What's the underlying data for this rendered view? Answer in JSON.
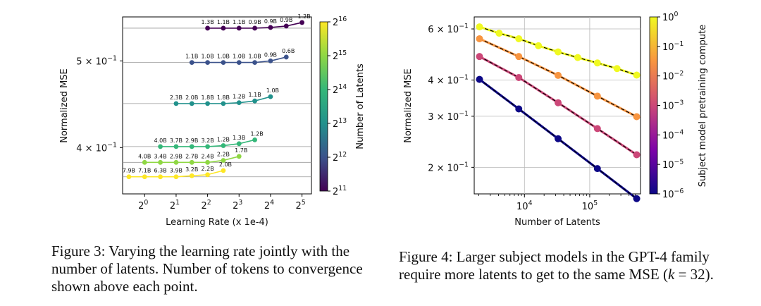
{
  "chart_data": [
    {
      "type": "line",
      "title": "",
      "xlabel": "Learning Rate (x 1e-4)",
      "ylabel": "Normalized MSE",
      "x_scale": "log2",
      "y_scale": "log",
      "xlim_log2": [
        -0.7,
        5.3
      ],
      "ylim": [
        0.355,
        0.56
      ],
      "x_ticks": [
        {
          "exp": 0,
          "label": "2",
          "sup": "0"
        },
        {
          "exp": 1,
          "label": "2",
          "sup": "1"
        },
        {
          "exp": 2,
          "label": "2",
          "sup": "2"
        },
        {
          "exp": 3,
          "label": "2",
          "sup": "3"
        },
        {
          "exp": 4,
          "label": "2",
          "sup": "4"
        },
        {
          "exp": 5,
          "label": "2",
          "sup": "5"
        }
      ],
      "y_ticks": [
        {
          "value": 0.5,
          "label": "5 × 10",
          "sup": "−1"
        },
        {
          "value": 0.4,
          "label": "4 × 10",
          "sup": "−1"
        }
      ],
      "colorbar": {
        "label": "Number of Latents",
        "ticks": [
          {
            "label": "2",
            "sup": "16"
          },
          {
            "label": "2",
            "sup": "15"
          },
          {
            "label": "2",
            "sup": "14"
          },
          {
            "label": "2",
            "sup": "13"
          },
          {
            "label": "2",
            "sup": "12"
          },
          {
            "label": "2",
            "sup": "11"
          }
        ]
      },
      "series": [
        {
          "name": "2^16 latents",
          "color": "#fde725",
          "ref_y": 0.371,
          "x_log2": [
            -0.5,
            0,
            0.5,
            1,
            1.5,
            2,
            2.5
          ],
          "y": [
            0.371,
            0.371,
            0.371,
            0.371,
            0.372,
            0.373,
            0.377
          ],
          "labels": [
            "7.9B",
            "7.1B",
            "6.3B",
            "3.9B",
            "3.2B",
            "2.2B",
            "2.0B"
          ]
        },
        {
          "name": "2^15 latents",
          "color": "#8fd744",
          "ref_y": 0.385,
          "x_log2": [
            0,
            0.5,
            1,
            1.5,
            2,
            2.5,
            3
          ],
          "y": [
            0.385,
            0.385,
            0.385,
            0.385,
            0.385,
            0.387,
            0.391
          ],
          "labels": [
            "4.0B",
            "3.4B",
            "2.9B",
            "2.7B",
            "2.4B",
            "2.2B",
            "1.7B"
          ]
        },
        {
          "name": "2^14 latents",
          "color": "#35b779",
          "ref_y": 0.401,
          "x_log2": [
            0.5,
            1,
            1.5,
            2,
            2.5,
            3,
            3.5
          ],
          "y": [
            0.401,
            0.401,
            0.401,
            0.401,
            0.402,
            0.404,
            0.408
          ],
          "labels": [
            "4.0B",
            "3.7B",
            "2.9B",
            "3.2B",
            "1.2B",
            "1.3B",
            "1.2B"
          ]
        },
        {
          "name": "2^13 latents",
          "color": "#21918c",
          "ref_y": 0.448,
          "x_log2": [
            1,
            1.5,
            2,
            2.5,
            3,
            3.5,
            4
          ],
          "y": [
            0.448,
            0.448,
            0.448,
            0.448,
            0.449,
            0.451,
            0.456
          ],
          "labels": [
            "2.3B",
            "2.0B",
            "1.8B",
            "1.8B",
            "1.2B",
            "1.1B",
            "1.0B"
          ]
        },
        {
          "name": "2^12 latents",
          "color": "#3b528b",
          "ref_y": 0.498,
          "x_log2": [
            1.5,
            2,
            2.5,
            3,
            3.5,
            4,
            4.5
          ],
          "y": [
            0.498,
            0.498,
            0.498,
            0.498,
            0.498,
            0.5,
            0.505
          ],
          "labels": [
            "1.1B",
            "1.0B",
            "1.0B",
            "1.0B",
            "1.0B",
            "0.9B",
            "0.6B"
          ]
        },
        {
          "name": "2^11 latents",
          "color": "#440154",
          "ref_y": 0.544,
          "x_log2": [
            2,
            2.5,
            3,
            3.5,
            4,
            4.5,
            5
          ],
          "y": [
            0.544,
            0.544,
            0.544,
            0.544,
            0.545,
            0.547,
            0.552
          ],
          "labels": [
            "1.3B",
            "1.1B",
            "1.1B",
            "0.9B",
            "0.9B",
            "0.9B",
            "1.2B"
          ]
        }
      ]
    },
    {
      "type": "line",
      "title": "",
      "xlabel": "Number of Latents",
      "ylabel": "Normalized MSE",
      "x_scale": "log",
      "y_scale": "log",
      "xlim": [
        1700,
        600000
      ],
      "ylim": [
        0.162,
        0.66
      ],
      "x_ticks": [
        {
          "value": 10000,
          "label": "10",
          "sup": "4"
        },
        {
          "value": 100000,
          "label": "10",
          "sup": "5"
        }
      ],
      "y_ticks": [
        {
          "value": 0.6,
          "label": "6 × 10",
          "sup": "−1"
        },
        {
          "value": 0.4,
          "label": "4 × 10",
          "sup": "−1"
        },
        {
          "value": 0.3,
          "label": "3 × 10",
          "sup": "−1"
        },
        {
          "value": 0.2,
          "label": "2 × 10",
          "sup": "−1"
        }
      ],
      "colorbar": {
        "label": "Subject model pretraining compute",
        "ticks": [
          {
            "label": "10",
            "sup": "0"
          },
          {
            "label": "10",
            "sup": "−1"
          },
          {
            "label": "10",
            "sup": "−2"
          },
          {
            "label": "10",
            "sup": "−3"
          },
          {
            "label": "10",
            "sup": "−4"
          },
          {
            "label": "10",
            "sup": "−5"
          },
          {
            "label": "10",
            "sup": "−6"
          }
        ]
      },
      "series": [
        {
          "name": "compute 1e0",
          "color": "#f0f921",
          "x": [
            2048,
            4096,
            8192,
            16384,
            32768,
            65536,
            131072,
            262144,
            524288
          ],
          "y": [
            0.61,
            0.58,
            0.555,
            0.525,
            0.5,
            0.478,
            0.458,
            0.438,
            0.416
          ]
        },
        {
          "name": "compute 1e-2",
          "color": "#f89540",
          "x": [
            2048,
            8192,
            32768,
            131072,
            524288
          ],
          "y": [
            0.555,
            0.482,
            0.415,
            0.352,
            0.299
          ]
        },
        {
          "name": "compute 1e-4",
          "color": "#cc4778",
          "x": [
            2048,
            8192,
            32768,
            131072,
            524288
          ],
          "y": [
            0.482,
            0.408,
            0.334,
            0.272,
            0.221
          ]
        },
        {
          "name": "compute 1e-6",
          "color": "#0d0887",
          "x": [
            2048,
            8192,
            32768,
            131072,
            524288
          ],
          "y": [
            0.402,
            0.318,
            0.251,
            0.198,
            0.156
          ]
        }
      ]
    }
  ],
  "captions": {
    "fig3": "Figure 3: Varying the learning rate jointly with the number of latents. Number of tokens to convergence shown above each point.",
    "fig4_pre": "Figure 4: Larger subject models in the GPT-4 family require more latents to get to the same MSE (",
    "fig4_var": "k",
    "fig4_post": " = 32)."
  }
}
